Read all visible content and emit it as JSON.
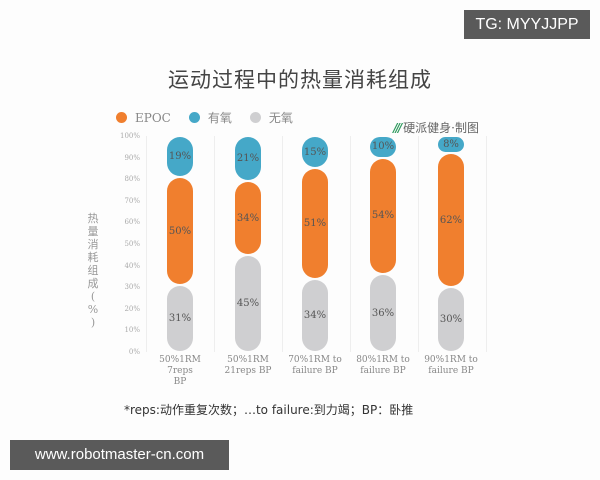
{
  "watermark_tg": "TG: MYYJJPP",
  "watermark_site": "www.robotmaster-cn.com",
  "credit": {
    "mark": "///",
    "text": "硬派健身·制图"
  },
  "note": "*reps:动作重复次数；…to failure:到力竭；BP：卧推",
  "chart_data": {
    "type": "bar",
    "stacked": true,
    "title": "运动过程中的热量消耗组成",
    "xlabel": "",
    "ylabel": "热量消耗组成(%)",
    "ylim": [
      0,
      100
    ],
    "yticks": [
      "0%",
      "10%",
      "20%",
      "30%",
      "40%",
      "50%",
      "60%",
      "70%",
      "80%",
      "90%",
      "100%"
    ],
    "grid": "vertical",
    "legend_position": "top-left",
    "legend": [
      {
        "name": "EPOC",
        "color": "#f07f2e"
      },
      {
        "name": "有氧",
        "color": "#45a8c8"
      },
      {
        "name": "无氧",
        "color": "#cfcfd1"
      }
    ],
    "categories": [
      "50%1RM 7reps BP",
      "50%1RM 21reps BP",
      "70%1RM to failure BP",
      "80%1RM to failure BP",
      "90%1RM to failure BP"
    ],
    "category_lines": [
      [
        "50%1RM 7reps",
        "BP"
      ],
      [
        "50%1RM",
        "21reps BP"
      ],
      [
        "70%1RM to",
        "failure BP"
      ],
      [
        "80%1RM to",
        "failure BP"
      ],
      [
        "90%1RM to",
        "failure BP"
      ]
    ],
    "series": [
      {
        "name": "无氧",
        "color": "#cfcfd1",
        "values": [
          31,
          45,
          34,
          36,
          30
        ]
      },
      {
        "name": "EPOC",
        "color": "#f07f2e",
        "values": [
          50,
          34,
          51,
          54,
          62
        ]
      },
      {
        "name": "有氧",
        "color": "#45a8c8",
        "values": [
          19,
          21,
          15,
          10,
          8
        ]
      }
    ]
  }
}
